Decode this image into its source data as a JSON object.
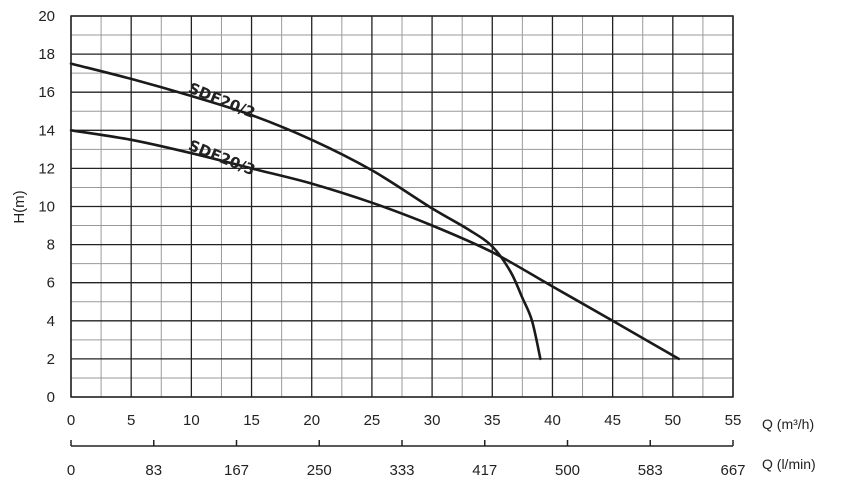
{
  "chart_data": {
    "type": "line",
    "ylabel": "H(m)",
    "xlabel": "Q (m³/h)",
    "x2label": "Q (l/min)",
    "xlim": [
      0,
      55
    ],
    "ylim": [
      0,
      20
    ],
    "x_ticks": [
      "0",
      "5",
      "10",
      "15",
      "20",
      "25",
      "30",
      "35",
      "40",
      "45",
      "50",
      "55"
    ],
    "y_ticks": [
      "0",
      "2",
      "4",
      "6",
      "8",
      "10",
      "12",
      "14",
      "16",
      "18",
      "20"
    ],
    "x2_ticks": [
      "0",
      "83",
      "167",
      "250",
      "333",
      "417",
      "500",
      "583",
      "667"
    ],
    "grid": true,
    "series": [
      {
        "name": "SDF20/2",
        "x": [
          0,
          5,
          10,
          15,
          20,
          25,
          30,
          33,
          35,
          36.5,
          37.5,
          38.3,
          39
        ],
        "y": [
          17.5,
          16.7,
          15.8,
          14.8,
          13.5,
          11.9,
          9.9,
          8.8,
          7.9,
          6.6,
          5.2,
          4.0,
          2.0
        ]
      },
      {
        "name": "SDF20/3",
        "x": [
          0,
          5,
          10,
          15,
          20,
          25,
          30,
          35,
          40,
          45,
          50.5
        ],
        "y": [
          14.0,
          13.5,
          12.8,
          12.0,
          11.2,
          10.2,
          9.0,
          7.6,
          5.8,
          4.0,
          2.0
        ]
      }
    ]
  }
}
